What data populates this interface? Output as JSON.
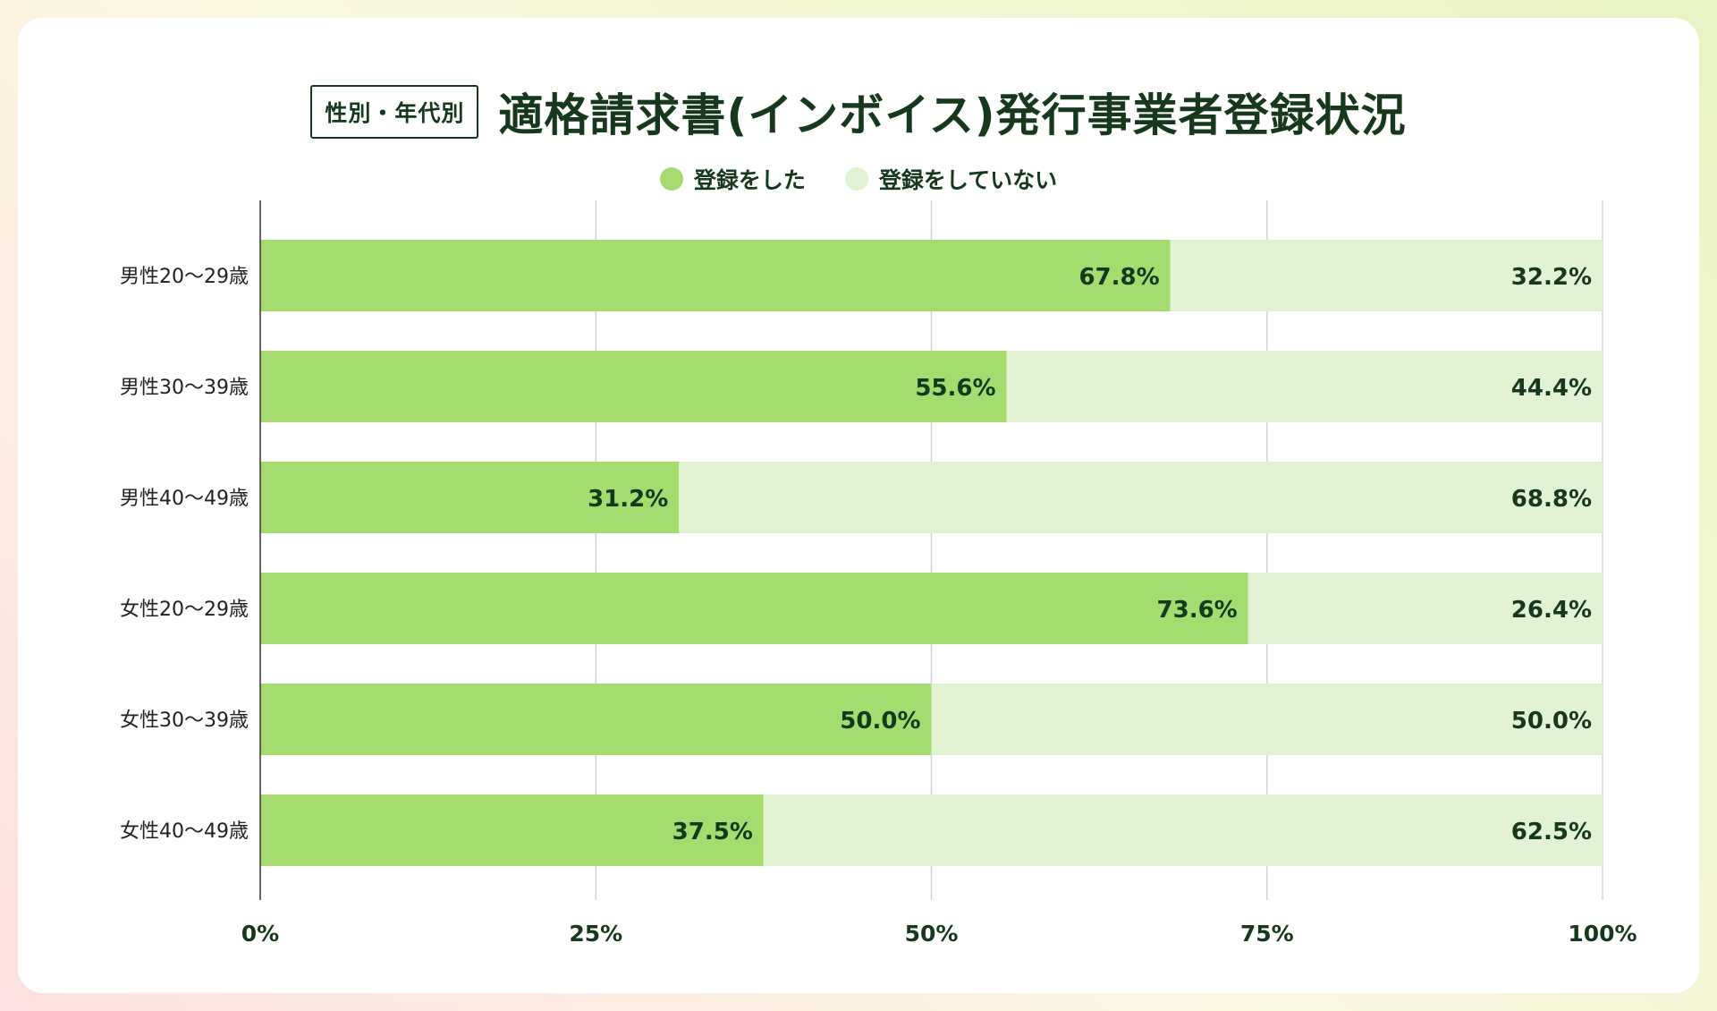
{
  "badge": "性別・年代別",
  "title": "適格請求書(インボイス)発行事業者登録状況",
  "colors": {
    "registered": "#a5dc70",
    "not_registered": "#e1f3d3",
    "text": "#16381c",
    "grid": "#d4d4d4",
    "axis": "#333333"
  },
  "chart_data": {
    "type": "bar",
    "orientation": "horizontal",
    "stacked": true,
    "title": "適格請求書(インボイス)発行事業者登録状況",
    "categories": [
      "男性20〜29歳",
      "男性30〜39歳",
      "男性40〜49歳",
      "女性20〜29歳",
      "女性30〜39歳",
      "女性40〜49歳"
    ],
    "series": [
      {
        "name": "登録をした",
        "values": [
          67.8,
          55.6,
          31.2,
          73.6,
          50.0,
          37.5
        ],
        "labels": [
          "67.8%",
          "55.6%",
          "31.2%",
          "73.6%",
          "50.0%",
          "37.5%"
        ]
      },
      {
        "name": "登録をしていない",
        "values": [
          32.2,
          44.4,
          68.8,
          26.4,
          50.0,
          62.5
        ],
        "labels": [
          "32.2%",
          "44.4%",
          "68.8%",
          "26.4%",
          "50.0%",
          "62.5%"
        ]
      }
    ],
    "xlim": [
      0,
      100
    ],
    "xticks": [
      "0%",
      "25%",
      "50%",
      "75%",
      "100%"
    ],
    "xtick_values": [
      0,
      25,
      50,
      75,
      100
    ],
    "legend": "top-center",
    "grid": true
  }
}
